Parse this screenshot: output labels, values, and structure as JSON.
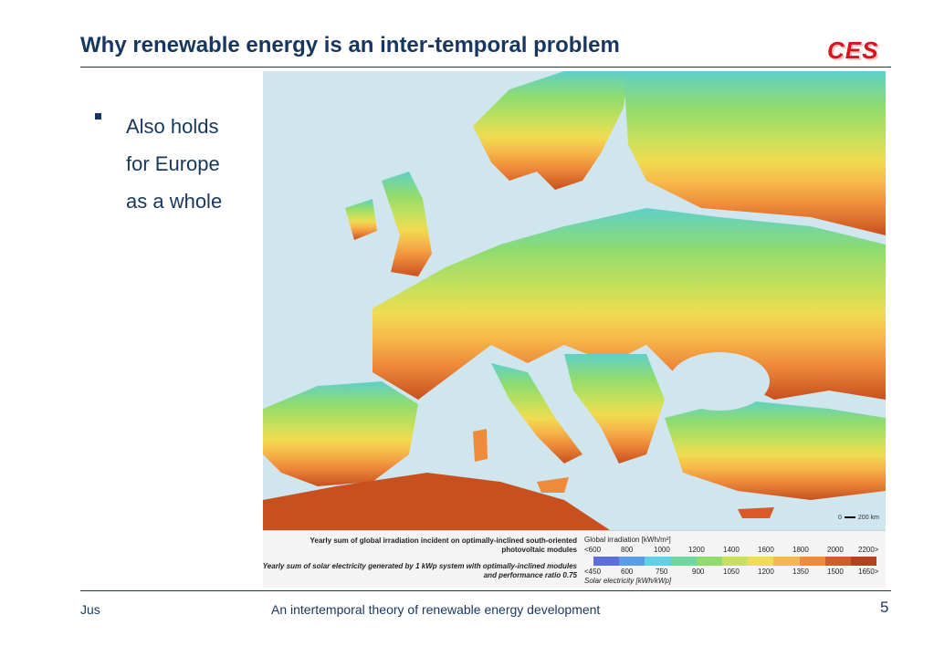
{
  "slide": {
    "title": "Why renewable energy is an inter-temporal problem",
    "logo_text": "CES",
    "bullet": {
      "lines": [
        "Also holds",
        "for Europe",
        "as a whole"
      ]
    },
    "footer": {
      "author": "Jus",
      "center_text": "An intertemporal theory of  renewable energy development",
      "page_number": "5"
    }
  },
  "map": {
    "scale_label_start": "0",
    "scale_label_end": "200 km",
    "legend": {
      "irradiation_caption": "Yearly sum of global irradiation incident on optimally-inclined south-oriented photovoltaic modules",
      "electricity_caption": "Yearly sum of solar electricity generated by 1 kWp system with optimally-inclined modules and performance ratio 0.75",
      "irradiation_title": "Global irradiation [kWh/m²]",
      "electricity_title": "Solar electricity [kWh/kWp]",
      "irradiation_ticks": [
        "<600",
        "800",
        "1000",
        "1200",
        "1400",
        "1600",
        "1800",
        "2000",
        "2200>"
      ],
      "electricity_ticks": [
        "<450",
        "600",
        "750",
        "900",
        "1050",
        "1200",
        "1350",
        "1500",
        "1650>"
      ],
      "colors": [
        "#5b6fd6",
        "#5a9ee6",
        "#5fd0e8",
        "#6ed7a0",
        "#8fdc6e",
        "#c8e05a",
        "#f0dc50",
        "#f6b84a",
        "#ee8a3a",
        "#d85a28",
        "#b8401c"
      ]
    }
  }
}
